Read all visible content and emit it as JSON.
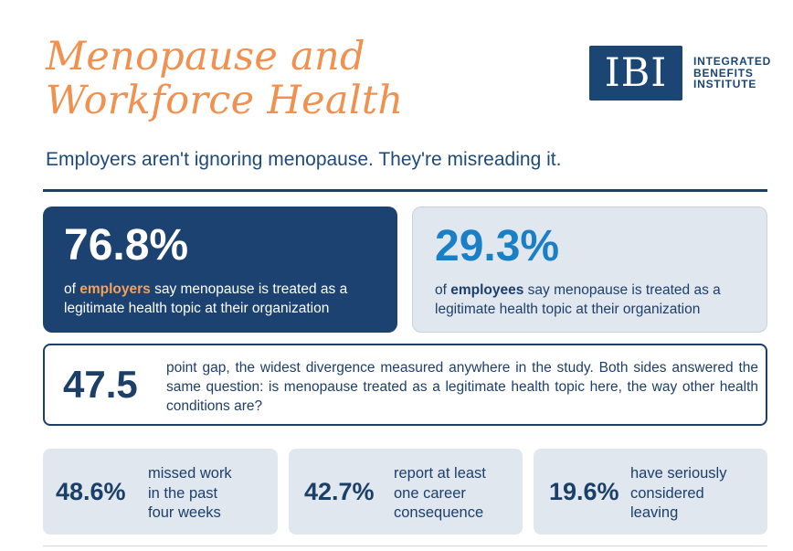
{
  "title": {
    "line1": "Menopause and",
    "line2": "Workforce Health"
  },
  "logo": {
    "mark": "IBI",
    "line1": "INTEGRATED",
    "line2": "BENEFITS",
    "line3": "INSTITUTE"
  },
  "subtitle": "Employers aren't ignoring menopause. They're misreading it.",
  "employers_card": {
    "value": "76.8%",
    "prefix": "of ",
    "highlight": "employers",
    "text": " say menopause is treated as a legitimate health topic at their organization"
  },
  "employees_card": {
    "value": "29.3%",
    "prefix": "of ",
    "highlight": "employees",
    "text": " say menopause is treated as a legitimate health topic at their organization"
  },
  "gap": {
    "value": "47.5",
    "text": "point gap, the widest divergence measured anywhere in the study. Both sides answered the same question: is menopause treated as a legitimate health topic here, the way other health conditions are?"
  },
  "stats": [
    {
      "value": "48.6%",
      "label": "missed work\nin the past\nfour weeks"
    },
    {
      "value": "42.7%",
      "label": "report at least\none career\nconsequence"
    },
    {
      "value": "19.6%",
      "label": "have seriously\nconsidered\nleaving"
    }
  ],
  "colors": {
    "accent": "#f0914f",
    "navy": "#1b4270",
    "blue": "#1a7fc4",
    "light": "#e0e7ee"
  }
}
